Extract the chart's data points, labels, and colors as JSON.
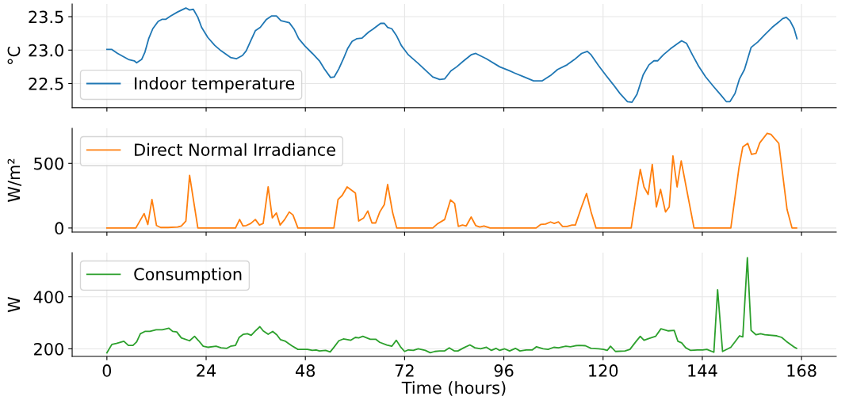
{
  "chart_data": [
    {
      "type": "line",
      "ylabel": "°C",
      "xlim": [
        -8.4,
        176.4
      ],
      "xticks": [
        0,
        24,
        48,
        72,
        96,
        120,
        144,
        168
      ],
      "ylim": [
        22.14,
        23.69
      ],
      "yticks": [
        {
          "value": 22.5,
          "label": "22.5"
        },
        {
          "value": 23,
          "label": "23.0"
        },
        {
          "value": 23.5,
          "label": "23.5"
        }
      ],
      "grid": true,
      "legend": "bottom left",
      "tick_labels": "y",
      "series": [
        {
          "name": "Indoor temperature",
          "color": "#1f77b4",
          "x": [
            0,
            1.2,
            2.6,
            5.2,
            6.6,
            7.2,
            8.4,
            9.2,
            10.1,
            11.1,
            12.4,
            13.3,
            14.2,
            15.4,
            17.1,
            19.1,
            20.0,
            20.9,
            22.0,
            22.9,
            24.4,
            26.1,
            27.6,
            29.9,
            31.3,
            32.8,
            33.7,
            34.8,
            35.9,
            37.1,
            38.6,
            39.8,
            41.0,
            42.1,
            44.1,
            45.3,
            46.4,
            47.9,
            49.7,
            51.4,
            52.6,
            54.1,
            55.0,
            56.1,
            57.2,
            58.2,
            59.3,
            60.4,
            61.7,
            63.3,
            64.3,
            66.2,
            67.1,
            67.9,
            68.9,
            70.0,
            71.2,
            72.9,
            75.3,
            78.8,
            80.5,
            81.7,
            83.2,
            84.6,
            86.3,
            88.1,
            89.2,
            91.8,
            95.0,
            97.4,
            98.5,
            100.9,
            103.2,
            105.3,
            107.3,
            109.0,
            111.3,
            113.1,
            114.8,
            116.2,
            117.1,
            118.9,
            120.6,
            122.4,
            124.1,
            125.9,
            127.0,
            128.2,
            129.7,
            131.1,
            132.3,
            133.2,
            134.6,
            136.3,
            138.1,
            139.0,
            140.2,
            141.6,
            143.1,
            144.8,
            146.8,
            148.6,
            149.8,
            150.7,
            151.9,
            153.0,
            154.2,
            155.8,
            157.4,
            159.1,
            160.9,
            162.5,
            163.4,
            164.3,
            165.2,
            166.2,
            166.9
          ],
          "values": [
            23.01,
            23.01,
            22.95,
            22.86,
            22.84,
            22.81,
            22.86,
            22.97,
            23.17,
            23.32,
            23.43,
            23.46,
            23.46,
            23.51,
            23.57,
            23.63,
            23.6,
            23.61,
            23.49,
            23.34,
            23.19,
            23.07,
            22.99,
            22.89,
            22.87,
            22.92,
            22.99,
            23.14,
            23.29,
            23.34,
            23.46,
            23.51,
            23.51,
            23.44,
            23.41,
            23.31,
            23.17,
            23.06,
            22.95,
            22.84,
            22.72,
            22.59,
            22.6,
            22.72,
            22.87,
            23.02,
            23.13,
            23.17,
            23.18,
            23.27,
            23.31,
            23.4,
            23.4,
            23.34,
            23.32,
            23.22,
            23.07,
            22.93,
            22.8,
            22.6,
            22.56,
            22.57,
            22.69,
            22.75,
            22.84,
            22.93,
            22.95,
            22.87,
            22.75,
            22.69,
            22.66,
            22.6,
            22.54,
            22.54,
            22.62,
            22.71,
            22.78,
            22.86,
            22.95,
            22.98,
            22.93,
            22.77,
            22.63,
            22.49,
            22.35,
            22.23,
            22.22,
            22.34,
            22.63,
            22.78,
            22.84,
            22.84,
            22.93,
            23.02,
            23.1,
            23.14,
            23.1,
            22.93,
            22.76,
            22.6,
            22.45,
            22.32,
            22.23,
            22.23,
            22.35,
            22.57,
            22.71,
            23.04,
            23.12,
            23.23,
            23.34,
            23.42,
            23.47,
            23.49,
            23.44,
            23.32,
            23.17
          ]
        }
      ]
    },
    {
      "type": "line",
      "ylabel": "W/m²",
      "xlim": [
        -8.4,
        176.4
      ],
      "xticks": [
        0,
        24,
        48,
        72,
        96,
        120,
        144,
        168
      ],
      "ylim": [
        -31,
        771
      ],
      "yticks": [
        0,
        500
      ],
      "grid": true,
      "legend": "top left",
      "tick_labels": "y",
      "series": [
        {
          "name": "Direct Normal Irradiance",
          "color": "#ff7f0e",
          "x": [
            0,
            7.0,
            9.0,
            9.9,
            10.9,
            12.0,
            13.0,
            14.8,
            17.1,
            18.0,
            19.1,
            20.0,
            22.0,
            31.1,
            32.1,
            32.9,
            33.7,
            34.8,
            35.9,
            36.9,
            37.8,
            39.0,
            40.0,
            41.0,
            41.9,
            43.0,
            44.1,
            45.0,
            46.2,
            54.9,
            55.9,
            56.9,
            58.1,
            60.1,
            60.9,
            62.1,
            63.1,
            64.1,
            65.0,
            66.0,
            67.1,
            67.9,
            69.1,
            70.1,
            78.8,
            79.9,
            81.7,
            83.1,
            84.1,
            85.0,
            86.0,
            86.9,
            88.1,
            89.2,
            90.2,
            91.2,
            92.7,
            103.8,
            104.9,
            106.1,
            107.3,
            108.2,
            109.2,
            110.2,
            111.3,
            112.5,
            113.3,
            114.8,
            116.0,
            117.1,
            118.3,
            126.8,
            129.0,
            129.9,
            130.9,
            131.9,
            132.9,
            133.9,
            135.1,
            136.0,
            136.9,
            137.9,
            138.9,
            140.1,
            142.0,
            150.9,
            152.9,
            153.8,
            155.0,
            155.9,
            157.0,
            157.9,
            159.7,
            160.6,
            162.5,
            164.5,
            165.7,
            166.8
          ],
          "values": [
            0,
            0,
            112,
            27,
            221,
            19,
            4,
            4,
            8,
            16,
            54,
            407,
            0,
            0,
            66,
            16,
            19,
            35,
            66,
            23,
            35,
            318,
            78,
            116,
            23,
            66,
            124,
            101,
            0,
            0,
            221,
            252,
            318,
            271,
            54,
            78,
            132,
            39,
            39,
            124,
            182,
            337,
            120,
            0,
            0,
            31,
            66,
            217,
            190,
            12,
            23,
            16,
            85,
            19,
            8,
            16,
            0,
            0,
            27,
            31,
            47,
            35,
            47,
            12,
            12,
            23,
            23,
            163,
            267,
            124,
            0,
            0,
            453,
            318,
            260,
            492,
            163,
            298,
            124,
            163,
            558,
            318,
            519,
            318,
            0,
            0,
            473,
            628,
            655,
            570,
            578,
            659,
            733,
            725,
            655,
            143,
            0,
            0
          ]
        }
      ]
    },
    {
      "type": "line",
      "ylabel": "W",
      "xlabel": "Time (hours)",
      "xlim": [
        -8.4,
        176.4
      ],
      "xticks": [
        0,
        24,
        48,
        72,
        96,
        120,
        144,
        168
      ],
      "ylim": [
        171,
        569
      ],
      "yticks": [
        200,
        400
      ],
      "grid": true,
      "legend": "top left",
      "series": [
        {
          "name": "Consumption",
          "color": "#2ca02c",
          "x": [
            0,
            1.2,
            2.3,
            4.1,
            5.2,
            6.3,
            7.2,
            8.1,
            9.2,
            10.4,
            11.9,
            13.4,
            15.0,
            15.9,
            16.9,
            18.0,
            20.0,
            21.2,
            22.2,
            23.3,
            24.4,
            26.4,
            27.6,
            29.0,
            29.9,
            31.1,
            32.0,
            33.0,
            34.0,
            34.9,
            35.8,
            37.0,
            37.8,
            39.0,
            40.1,
            41.1,
            42.0,
            43.2,
            44.7,
            46.2,
            48.5,
            49.7,
            50.6,
            51.4,
            52.9,
            54.0,
            55.0,
            56.1,
            57.2,
            59.0,
            60.1,
            60.9,
            61.9,
            63.7,
            65.0,
            66.0,
            67.7,
            68.9,
            70.0,
            71.0,
            72.0,
            72.9,
            74.1,
            75.3,
            77.0,
            78.2,
            79.3,
            80.5,
            81.7,
            82.8,
            84.0,
            84.9,
            86.3,
            87.8,
            89.0,
            90.4,
            91.8,
            93.0,
            94.1,
            95.0,
            96.2,
            97.4,
            98.8,
            99.9,
            101.4,
            102.9,
            103.9,
            105.5,
            106.7,
            108.1,
            109.2,
            111.0,
            112.1,
            113.3,
            114.2,
            115.7,
            117.1,
            118.9,
            120.1,
            121.0,
            121.8,
            123.0,
            125.3,
            126.5,
            127.9,
            129.0,
            129.9,
            131.1,
            132.7,
            134.0,
            135.8,
            137.2,
            138.1,
            139.0,
            140.0,
            141.2,
            142.8,
            144.1,
            145.1,
            146.8,
            147.7,
            148.9,
            150.9,
            152.0,
            153.0,
            153.8,
            154.9,
            155.8,
            157.0,
            158.1,
            159.1,
            162.0,
            163.2,
            164.3,
            166.1,
            166.8
          ],
          "values": [
            185,
            217,
            221,
            229,
            213,
            213,
            227,
            258,
            267,
            267,
            273,
            273,
            279,
            267,
            265,
            242,
            231,
            248,
            231,
            210,
            206,
            210,
            204,
            202,
            210,
            213,
            244,
            256,
            258,
            252,
            267,
            285,
            269,
            256,
            267,
            254,
            235,
            229,
            212,
            198,
            198,
            194,
            196,
            192,
            194,
            188,
            208,
            231,
            238,
            233,
            244,
            242,
            248,
            237,
            237,
            225,
            215,
            210,
            233,
            208,
            190,
            196,
            194,
            200,
            194,
            185,
            190,
            192,
            192,
            204,
            192,
            192,
            204,
            215,
            204,
            200,
            206,
            194,
            202,
            194,
            200,
            192,
            202,
            192,
            196,
            196,
            208,
            200,
            198,
            206,
            204,
            210,
            208,
            212,
            213,
            212,
            202,
            200,
            198,
            194,
            210,
            190,
            192,
            198,
            227,
            248,
            233,
            240,
            248,
            277,
            269,
            271,
            229,
            223,
            204,
            194,
            196,
            196,
            198,
            187,
            427,
            190,
            206,
            229,
            250,
            246,
            550,
            271,
            254,
            258,
            254,
            250,
            244,
            229,
            208,
            202
          ]
        }
      ]
    }
  ]
}
